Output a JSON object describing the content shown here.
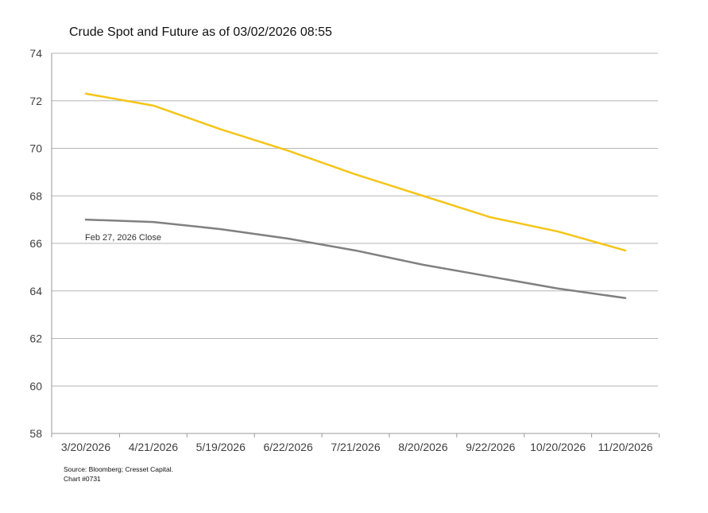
{
  "chart_data": {
    "type": "line",
    "title": "Crude Spot and Future as of 03/02/2026 08:55",
    "xlabel": "",
    "ylabel": "",
    "categories": [
      "3/20/2026",
      "4/21/2026",
      "5/19/2026",
      "6/22/2026",
      "7/21/2026",
      "8/20/2026",
      "9/22/2026",
      "10/20/2026",
      "11/20/2026"
    ],
    "ylim": [
      58,
      74
    ],
    "yticks": [
      58,
      60,
      62,
      64,
      66,
      68,
      70,
      72,
      74
    ],
    "grid": true,
    "series": [
      {
        "name": "",
        "color": "#F5C518",
        "values": [
          72.3,
          71.8,
          70.8,
          69.9,
          68.9,
          68.0,
          67.1,
          66.5,
          65.7
        ]
      },
      {
        "name": "Feb 27, 2026 Close",
        "color": "#808080",
        "values": [
          67.0,
          66.9,
          66.6,
          66.2,
          65.7,
          65.1,
          64.6,
          64.1,
          63.7
        ]
      }
    ],
    "annotations": [
      {
        "text": "Feb 27, 2026 Close",
        "series_index": 1
      }
    ],
    "source": "Source: Bloomberg; Cresset Capital.",
    "chart_id": "Chart #0731"
  },
  "colors": {
    "grid": "#B5B5B5",
    "axis": "#9A9A9A",
    "text": "#404040"
  }
}
